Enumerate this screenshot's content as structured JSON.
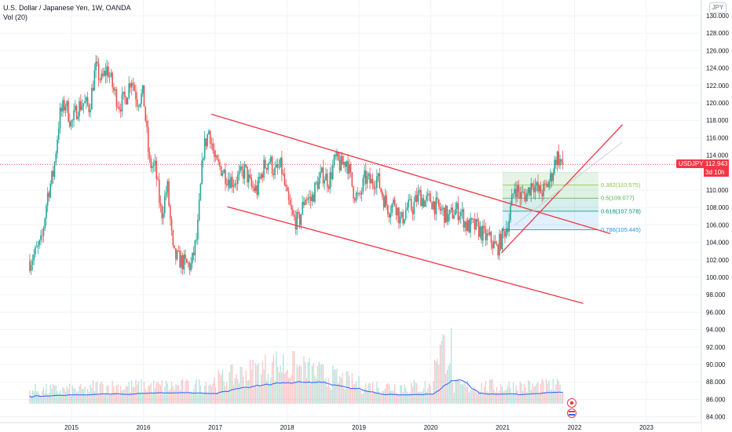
{
  "legend": {
    "title": "U.S. Dollar / Japanese Yen, 1W, OANDA",
    "indicator": "Vol (20)"
  },
  "currency_button": "JPY",
  "last_price": {
    "symbol": "USDJPY",
    "value": "112.943",
    "countdown": "3d 10h"
  },
  "colors": {
    "up": "#26a69a",
    "down": "#ef5350",
    "trendline": "#f23645",
    "volume_ma": "#2962ff",
    "fib_green": "#4caf50",
    "fib_teal": "#00897b",
    "fib_blue": "#2196f3"
  },
  "chart_data": {
    "type": "candlestick",
    "title": "U.S. Dollar / Japanese Yen, 1W, OANDA",
    "x_axis": {
      "tick_labels": [
        "2015",
        "2016",
        "2017",
        "2018",
        "2019",
        "2020",
        "2021",
        "2022",
        "2023"
      ]
    },
    "y_axis": {
      "tick_labels": [
        "84.000",
        "86.000",
        "88.000",
        "90.000",
        "92.000",
        "94.000",
        "96.000",
        "98.000",
        "100.000",
        "102.000",
        "104.000",
        "106.000",
        "108.000",
        "110.000",
        "112.000",
        "114.000",
        "116.000",
        "118.000",
        "120.000",
        "122.000",
        "124.000",
        "126.000",
        "128.000",
        "130.000"
      ],
      "range": [
        84,
        130.5
      ]
    },
    "price_path_monthly": [
      {
        "d": "2014-06",
        "p": 101.8
      },
      {
        "d": "2014-07",
        "p": 102.8
      },
      {
        "d": "2014-08",
        "p": 104.0
      },
      {
        "d": "2014-09",
        "p": 109.5
      },
      {
        "d": "2014-10",
        "p": 112.0
      },
      {
        "d": "2014-11",
        "p": 118.5
      },
      {
        "d": "2014-12",
        "p": 120.0
      },
      {
        "d": "2015-01",
        "p": 117.5
      },
      {
        "d": "2015-02",
        "p": 119.5
      },
      {
        "d": "2015-03",
        "p": 120.0
      },
      {
        "d": "2015-04",
        "p": 119.5
      },
      {
        "d": "2015-05",
        "p": 124.0
      },
      {
        "d": "2015-06",
        "p": 122.5
      },
      {
        "d": "2015-07",
        "p": 124.0
      },
      {
        "d": "2015-08",
        "p": 121.5
      },
      {
        "d": "2015-09",
        "p": 119.8
      },
      {
        "d": "2015-10",
        "p": 120.5
      },
      {
        "d": "2015-11",
        "p": 123.0
      },
      {
        "d": "2015-12",
        "p": 120.3
      },
      {
        "d": "2016-01",
        "p": 121.0
      },
      {
        "d": "2016-02",
        "p": 113.0
      },
      {
        "d": "2016-03",
        "p": 112.5
      },
      {
        "d": "2016-04",
        "p": 107.0
      },
      {
        "d": "2016-05",
        "p": 110.5
      },
      {
        "d": "2016-06",
        "p": 102.5
      },
      {
        "d": "2016-07",
        "p": 102.0
      },
      {
        "d": "2016-08",
        "p": 101.5
      },
      {
        "d": "2016-09",
        "p": 101.3
      },
      {
        "d": "2016-10",
        "p": 104.8
      },
      {
        "d": "2016-11",
        "p": 114.5
      },
      {
        "d": "2016-12",
        "p": 117.0
      },
      {
        "d": "2017-01",
        "p": 113.0
      },
      {
        "d": "2017-02",
        "p": 112.5
      },
      {
        "d": "2017-03",
        "p": 111.5
      },
      {
        "d": "2017-04",
        "p": 111.0
      },
      {
        "d": "2017-05",
        "p": 111.5
      },
      {
        "d": "2017-06",
        "p": 112.3
      },
      {
        "d": "2017-07",
        "p": 110.3
      },
      {
        "d": "2017-08",
        "p": 110.0
      },
      {
        "d": "2017-09",
        "p": 112.5
      },
      {
        "d": "2017-10",
        "p": 113.5
      },
      {
        "d": "2017-11",
        "p": 112.0
      },
      {
        "d": "2017-12",
        "p": 112.7
      },
      {
        "d": "2018-01",
        "p": 109.0
      },
      {
        "d": "2018-02",
        "p": 106.7
      },
      {
        "d": "2018-03",
        "p": 106.3
      },
      {
        "d": "2018-04",
        "p": 109.3
      },
      {
        "d": "2018-05",
        "p": 108.8
      },
      {
        "d": "2018-06",
        "p": 110.8
      },
      {
        "d": "2018-07",
        "p": 111.8
      },
      {
        "d": "2018-08",
        "p": 111.0
      },
      {
        "d": "2018-09",
        "p": 113.5
      },
      {
        "d": "2018-10",
        "p": 112.8
      },
      {
        "d": "2018-11",
        "p": 113.5
      },
      {
        "d": "2018-12",
        "p": 110.0
      },
      {
        "d": "2019-01",
        "p": 108.8
      },
      {
        "d": "2019-02",
        "p": 111.4
      },
      {
        "d": "2019-03",
        "p": 110.8
      },
      {
        "d": "2019-04",
        "p": 111.5
      },
      {
        "d": "2019-05",
        "p": 109.3
      },
      {
        "d": "2019-06",
        "p": 107.8
      },
      {
        "d": "2019-07",
        "p": 108.7
      },
      {
        "d": "2019-08",
        "p": 106.3
      },
      {
        "d": "2019-09",
        "p": 108.0
      },
      {
        "d": "2019-10",
        "p": 108.0
      },
      {
        "d": "2019-11",
        "p": 109.5
      },
      {
        "d": "2019-12",
        "p": 108.7
      },
      {
        "d": "2020-01",
        "p": 108.9
      },
      {
        "d": "2020-02",
        "p": 108.0
      },
      {
        "d": "2020-03",
        "p": 107.5
      },
      {
        "d": "2020-04",
        "p": 106.8
      },
      {
        "d": "2020-05",
        "p": 107.7
      },
      {
        "d": "2020-06",
        "p": 107.5
      },
      {
        "d": "2020-07",
        "p": 105.8
      },
      {
        "d": "2020-08",
        "p": 105.9
      },
      {
        "d": "2020-09",
        "p": 105.5
      },
      {
        "d": "2020-10",
        "p": 104.7
      },
      {
        "d": "2020-11",
        "p": 104.3
      },
      {
        "d": "2020-12",
        "p": 103.2
      },
      {
        "d": "2021-01",
        "p": 104.7
      },
      {
        "d": "2021-02",
        "p": 106.5
      },
      {
        "d": "2021-03",
        "p": 110.5
      },
      {
        "d": "2021-04",
        "p": 109.3
      },
      {
        "d": "2021-05",
        "p": 109.5
      },
      {
        "d": "2021-06",
        "p": 111.0
      },
      {
        "d": "2021-07",
        "p": 109.7
      },
      {
        "d": "2021-08",
        "p": 110.0
      },
      {
        "d": "2021-09",
        "p": 111.3
      },
      {
        "d": "2021-10",
        "p": 114.0
      },
      {
        "d": "2021-11",
        "p": 112.9
      }
    ],
    "trendlines": [
      {
        "name": "channel-upper",
        "from": {
          "d": "2016-12-12",
          "p": 118.7
        },
        "to": {
          "d": "2022-07-01",
          "p": 105.0
        }
      },
      {
        "name": "channel-lower",
        "from": {
          "d": "2017-03-01",
          "p": 108.1
        },
        "to": {
          "d": "2022-02-15",
          "p": 97.0
        }
      },
      {
        "name": "support-rising",
        "from": {
          "d": "2020-12-25",
          "p": 102.8
        },
        "to": {
          "d": "2022-09-01",
          "p": 117.5
        }
      },
      {
        "name": "support-rising-thin",
        "from": {
          "d": "2021-03-01",
          "p": 106.0
        },
        "to": {
          "d": "2022-09-01",
          "p": 115.5
        }
      }
    ],
    "fib_levels": [
      {
        "label": "0.382(110.575)",
        "value": 110.575
      },
      {
        "label": "0.5(109.077)",
        "value": 109.077
      },
      {
        "label": "0.618(107.578)",
        "value": 107.578
      },
      {
        "label": "0.786(105.445)",
        "value": 105.445
      }
    ],
    "fib_range": {
      "start": "2021-01-01",
      "end": "2022-05-01"
    },
    "last_price": 112.943,
    "volume": {
      "name": "Vol (20)",
      "spike_date": "2020-03",
      "ma_peak_date": "2017-12"
    }
  }
}
